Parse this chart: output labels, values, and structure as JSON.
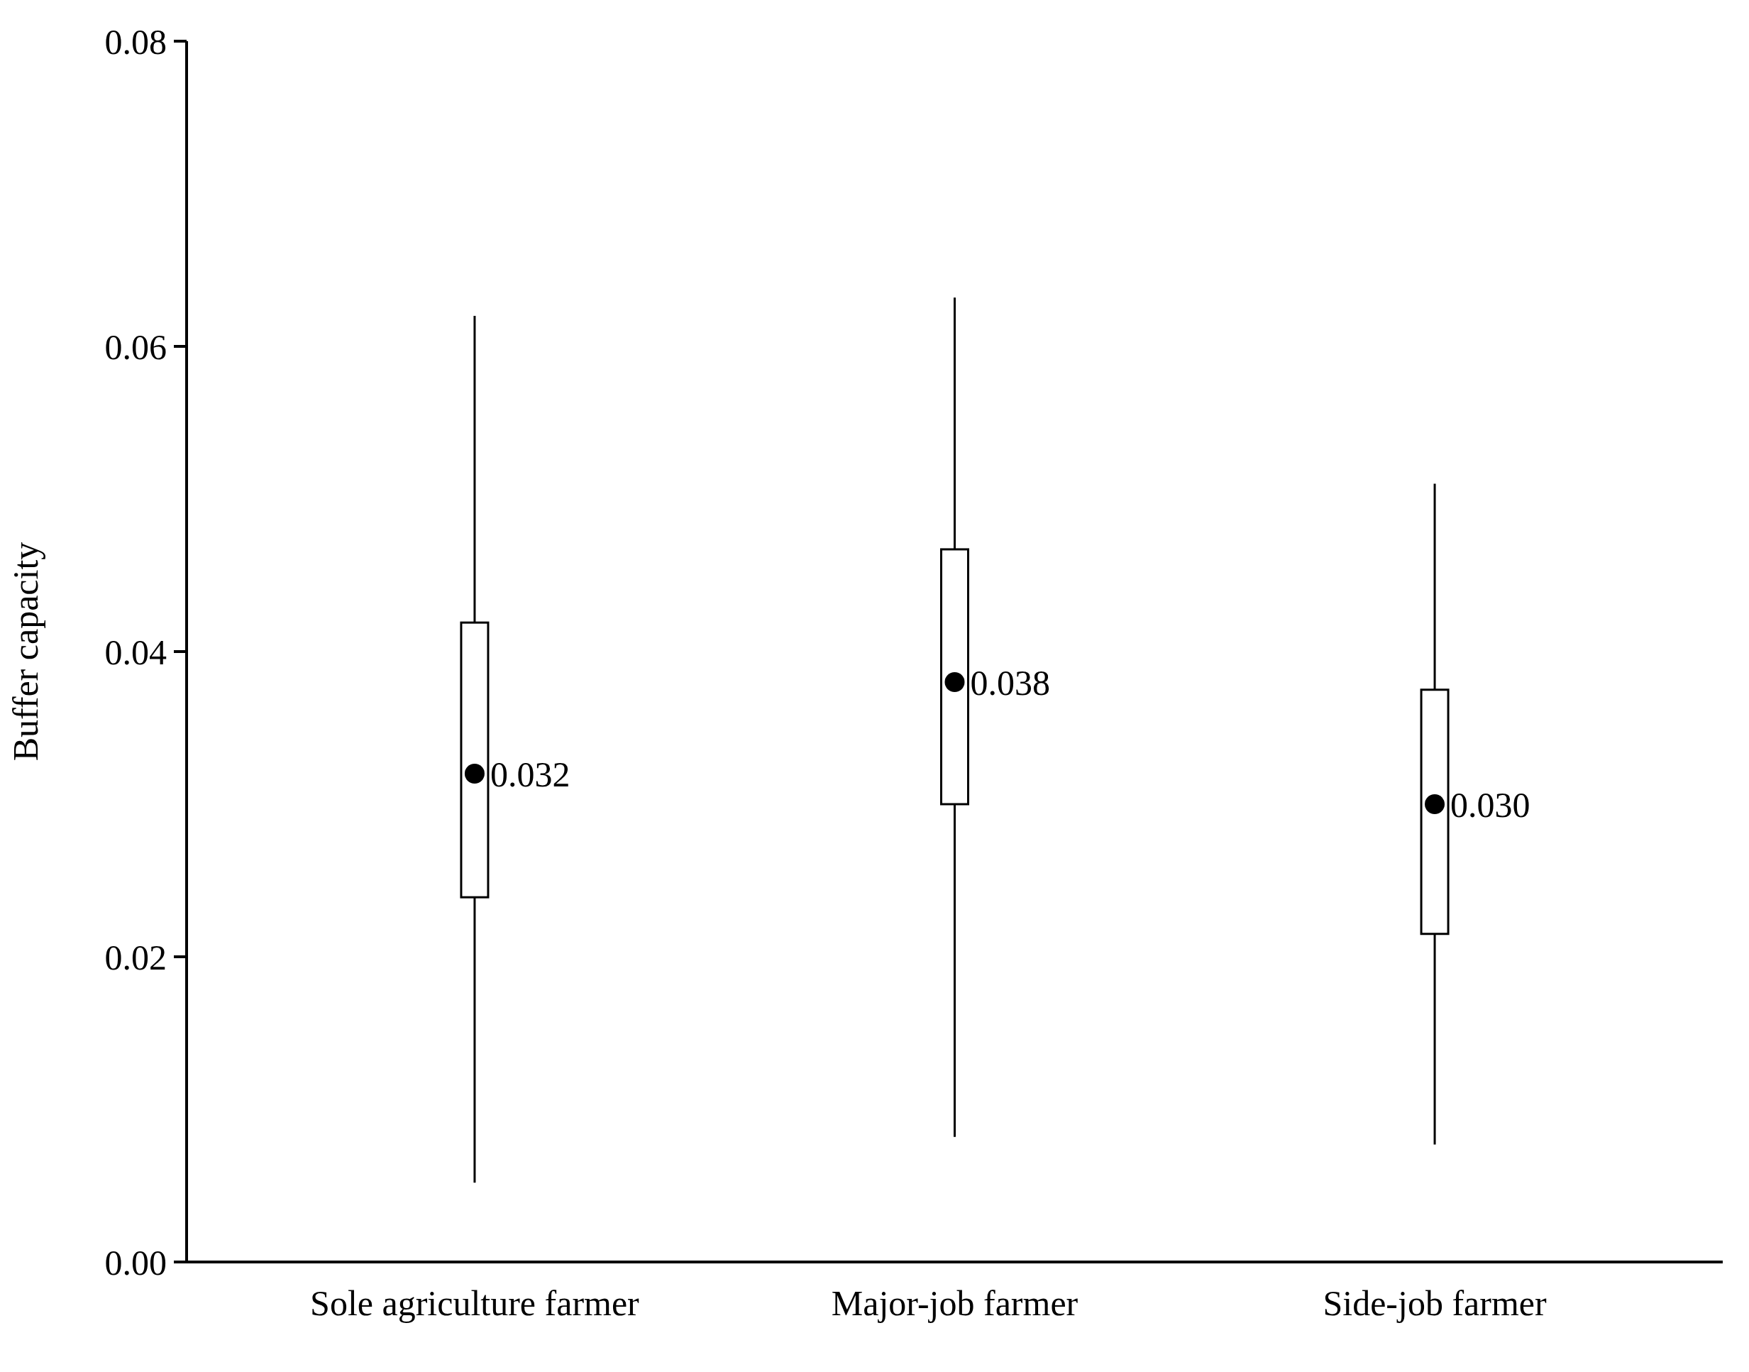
{
  "chart_data": {
    "type": "box",
    "ylabel": "Buffer capacity",
    "categories": [
      "Sole agriculture farmer",
      "Major-job farmer",
      "Side-job farmer"
    ],
    "boxes": [
      {
        "low": 0.0052,
        "q1": 0.0239,
        "median": 0.032,
        "q3": 0.0419,
        "high": 0.062
      },
      {
        "low": 0.0082,
        "q1": 0.03,
        "median": 0.038,
        "q3": 0.0467,
        "high": 0.0632
      },
      {
        "low": 0.0077,
        "q1": 0.0215,
        "median": 0.03,
        "q3": 0.0375,
        "high": 0.051
      }
    ],
    "value_labels": [
      "0.032",
      "0.038",
      "0.030"
    ],
    "ylim": [
      0,
      0.08
    ],
    "yticks": [
      {
        "value": 0,
        "label": "0.00"
      },
      {
        "value": 0.02,
        "label": "0.02"
      },
      {
        "value": 0.04,
        "label": "0.04"
      },
      {
        "value": 0.06,
        "label": "0.06"
      },
      {
        "value": 0.08,
        "label": "0.08"
      }
    ],
    "data_labels": false
  }
}
